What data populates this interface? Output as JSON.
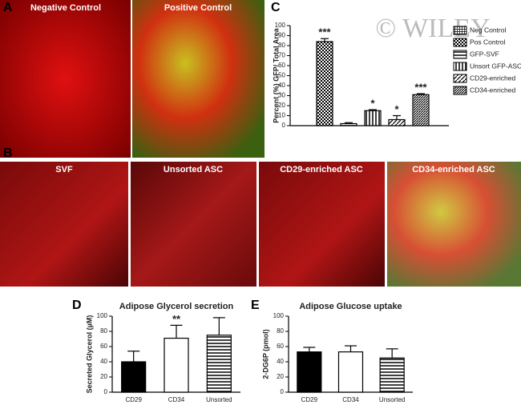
{
  "panels": [
    "A",
    "B",
    "C",
    "D",
    "E"
  ],
  "images_a": [
    "Negative Control",
    "Positive Control"
  ],
  "images_b": [
    "SVF",
    "Unsorted ASC",
    "CD29-enriched ASC",
    "CD34-enriched ASC"
  ],
  "watermark": "© WILEY",
  "chart_data": [
    {
      "type": "bar",
      "ylabel": "Percent (%) GFP/ Total Area",
      "ylim": [
        0,
        100
      ],
      "yticks": [
        0,
        10,
        20,
        30,
        40,
        50,
        60,
        70,
        80,
        90,
        100
      ],
      "series": [
        {
          "name": "Neg Control",
          "pattern": "crosshatch",
          "values": [
            0
          ]
        },
        {
          "name": "Pos Control",
          "pattern": "checker",
          "values": [
            84
          ],
          "errors": [
            3
          ],
          "annotation": "***"
        },
        {
          "name": "GFP-SVF",
          "pattern": "hlines",
          "values": [
            2
          ],
          "errors": [
            1
          ]
        },
        {
          "name": "Unsort GFP-ASC",
          "pattern": "vlines",
          "values": [
            15
          ],
          "errors": [
            1
          ],
          "annotation": "*"
        },
        {
          "name": "CD29-enriched",
          "pattern": "diag",
          "values": [
            6
          ],
          "errors": [
            4
          ],
          "annotation": "*"
        },
        {
          "name": "CD34-enriched",
          "pattern": "diag2",
          "values": [
            31
          ],
          "errors": [
            1
          ],
          "annotation": "***"
        }
      ]
    },
    {
      "type": "bar",
      "title": "Adipose Glycerol secretion",
      "ylabel": "Secreted Glycerol (µM)",
      "categories": [
        "CD29",
        "CD34",
        "Unsorted"
      ],
      "values": [
        40,
        71,
        75
      ],
      "errors": [
        14,
        17,
        23
      ],
      "patterns": [
        "black",
        "white",
        "hlines"
      ],
      "annotations": [
        null,
        "**",
        null
      ],
      "ylim": [
        0,
        100
      ],
      "yticks": [
        0,
        20,
        40,
        60,
        80,
        100
      ]
    },
    {
      "type": "bar",
      "title": "Adipose Glucose uptake",
      "ylabel": "2-DG6P (pmol)",
      "categories": [
        "CD29",
        "CD34",
        "Unsorted"
      ],
      "values": [
        53,
        53,
        45
      ],
      "errors": [
        6,
        8,
        12
      ],
      "patterns": [
        "black",
        "white",
        "hlines"
      ],
      "ylim": [
        0,
        100
      ],
      "yticks": [
        0,
        20,
        40,
        60,
        80,
        100
      ]
    }
  ]
}
